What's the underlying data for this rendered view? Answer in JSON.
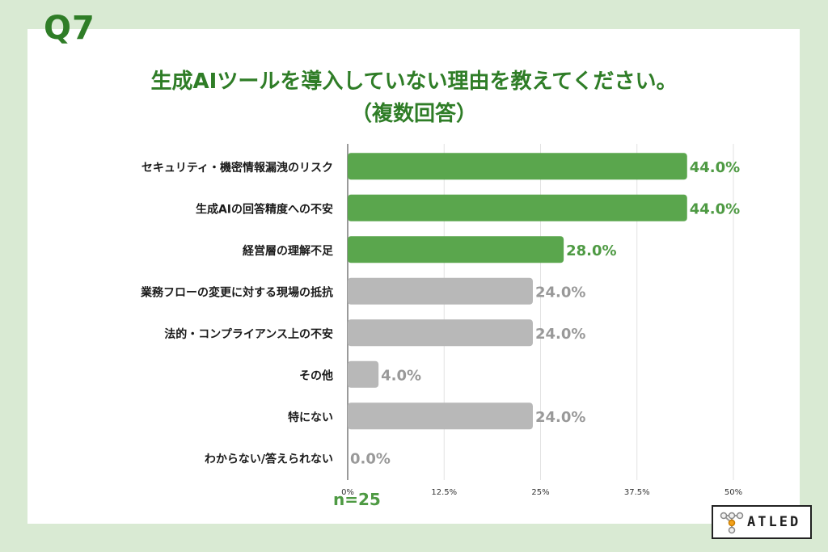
{
  "header": {
    "question_label": "Q7",
    "title_line1": "生成AIツールを導入していない理由を教えてください。",
    "title_line2": "（複数回答）"
  },
  "colors": {
    "background": "#d9ead3",
    "title": "#2f7d27",
    "highlight_bar": "#5aa64d",
    "normal_bar": "#b8b8b8",
    "highlight_label": "#4e9a43",
    "normal_label": "#999999"
  },
  "chart_data": {
    "type": "bar",
    "orientation": "horizontal",
    "categories": [
      "セキュリティ・機密情報漏洩のリスク",
      "生成AIの回答精度への不安",
      "経営層の理解不足",
      "業務フローの変更に対する現場の抵抗",
      "法的・コンプライアンス上の不安",
      "その他",
      "特にない",
      "わからない/答えられない"
    ],
    "values": [
      44.0,
      44.0,
      28.0,
      24.0,
      24.0,
      4.0,
      24.0,
      0.0
    ],
    "value_labels": [
      "44.0%",
      "44.0%",
      "28.0%",
      "24.0%",
      "24.0%",
      "4.0%",
      "24.0%",
      "0.0%"
    ],
    "highlighted": [
      true,
      true,
      true,
      false,
      false,
      false,
      false,
      false
    ],
    "xlim": [
      0,
      50
    ],
    "x_ticks": [
      0,
      12.5,
      25,
      37.5,
      50
    ],
    "x_tick_labels": [
      "0%",
      "12.5%",
      "25%",
      "37.5%",
      "50%"
    ],
    "grid": true,
    "sample_size": "n=25"
  },
  "logo": {
    "text": "ATLED",
    "icon": "atled-network-logo-icon"
  }
}
